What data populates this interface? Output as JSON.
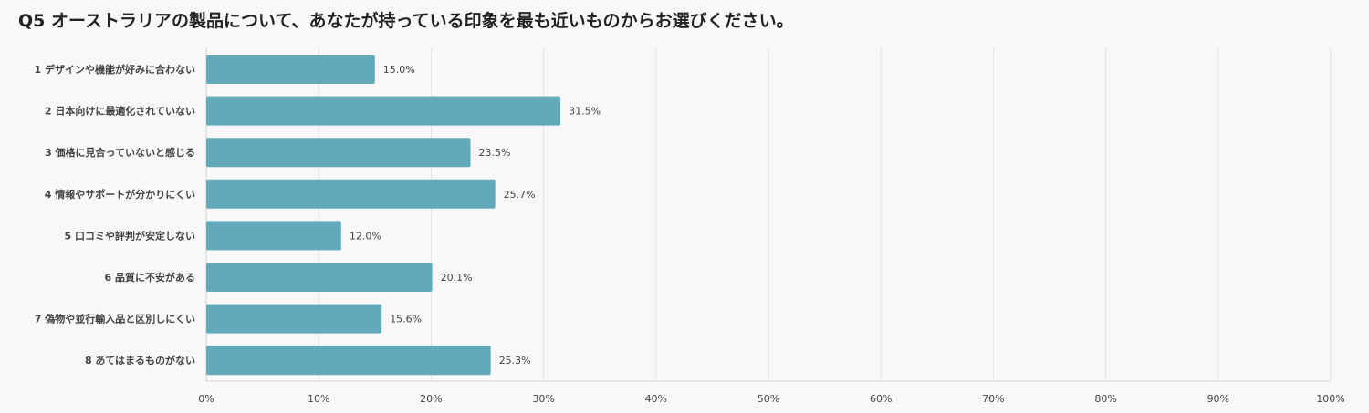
{
  "chart_data": {
    "type": "bar",
    "orientation": "horizontal",
    "title": "Q5 オーストラリアの製品について、あなたが持っている印象を最も近いものからお選びください。",
    "categories": [
      "1 デザインや機能が好みに合わない",
      "2 日本向けに最適化されていない",
      "3 価格に見合っていないと感じる",
      "4 情報やサポートが分かりにくい",
      "5 口コミや評判が安定しない",
      "6 品質に不安がある",
      "7 偽物や並行輸入品と区別しにくい",
      "8 あてはまるものがない"
    ],
    "values": [
      15.0,
      31.5,
      23.5,
      25.7,
      12.0,
      20.1,
      15.6,
      25.3
    ],
    "value_labels": [
      "15.0%",
      "31.5%",
      "23.5%",
      "25.7%",
      "12.0%",
      "20.1%",
      "15.6%",
      "25.3%"
    ],
    "xlim": [
      0,
      100
    ],
    "xticks": [
      "0%",
      "10%",
      "20%",
      "30%",
      "40%",
      "50%",
      "60%",
      "70%",
      "80%",
      "90%",
      "100%"
    ],
    "grid": true,
    "bar_color": "#62a9b9"
  }
}
